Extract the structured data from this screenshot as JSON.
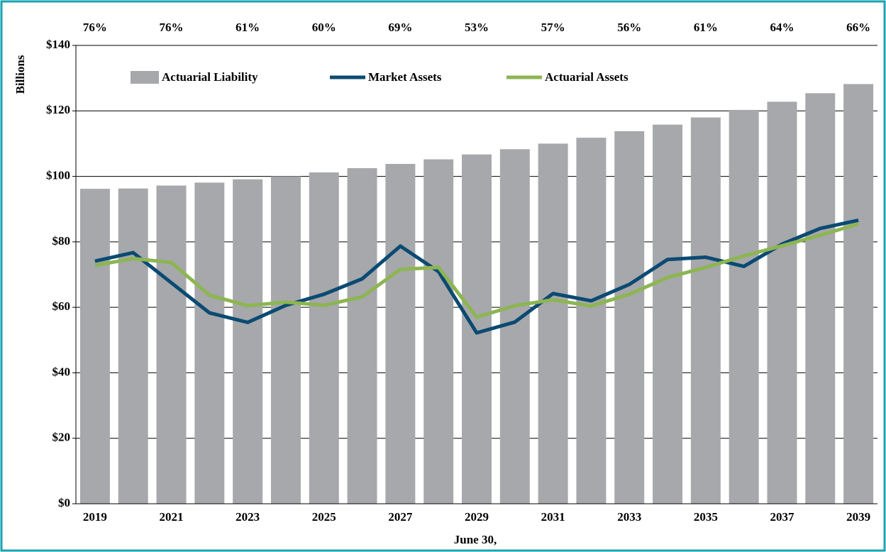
{
  "chart_data": {
    "type": "bar_line",
    "y_label": "Billions",
    "x_label": "June 30,",
    "categories": [
      "2019",
      null,
      "2021",
      null,
      "2023",
      null,
      "2025",
      null,
      "2027",
      null,
      "2029",
      null,
      "2031",
      null,
      "2033",
      null,
      "2035",
      null,
      "2037",
      null,
      "2039"
    ],
    "annotations": [
      "76%",
      "76%",
      "61%",
      "60%",
      "69%",
      "53%",
      "57%",
      "56%",
      "61%",
      "64%",
      "66%"
    ],
    "series": [
      {
        "name": "Actuarial Liability",
        "kind": "bar",
        "color": "#a6a8ab",
        "values": [
          96.2,
          96.3,
          97.2,
          98.1,
          99.1,
          100.0,
          101.2,
          102.5,
          103.8,
          105.2,
          106.7,
          108.3,
          110.0,
          111.8,
          113.8,
          115.8,
          118.0,
          120.3,
          122.8,
          125.4,
          128.2
        ]
      },
      {
        "name": "Market Assets",
        "kind": "line",
        "color": "#0b4a72",
        "values": [
          74.1,
          76.7,
          67.5,
          58.3,
          55.4,
          60.6,
          64.0,
          68.7,
          78.7,
          70.9,
          52.2,
          55.5,
          64.2,
          62.0,
          67.0,
          74.6,
          75.3,
          72.5,
          79.3,
          84.1,
          86.6
        ]
      },
      {
        "name": "Actuarial Assets",
        "kind": "line",
        "color": "#8db552",
        "values": [
          72.8,
          74.9,
          73.7,
          63.7,
          60.5,
          61.6,
          60.6,
          63.2,
          71.6,
          72.2,
          57.0,
          60.5,
          62.3,
          60.4,
          64.0,
          69.1,
          72.2,
          75.7,
          78.8,
          82.0,
          85.5
        ]
      }
    ],
    "ylim": [
      0,
      140
    ],
    "yticks": [
      {
        "value": 0,
        "label": "$0"
      },
      {
        "value": 20,
        "label": "$20"
      },
      {
        "value": 40,
        "label": "$40"
      },
      {
        "value": 60,
        "label": "$60"
      },
      {
        "value": 80,
        "label": "$80"
      },
      {
        "value": 100,
        "label": "$100"
      },
      {
        "value": 120,
        "label": "$120"
      },
      {
        "value": 140,
        "label": "$140"
      }
    ],
    "grid": true
  }
}
